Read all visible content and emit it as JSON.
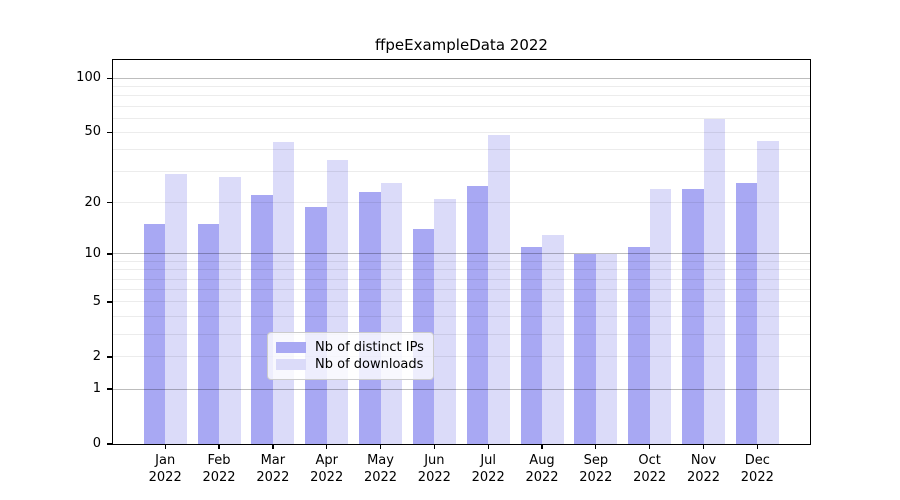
{
  "chart_data": {
    "type": "bar",
    "title": "ffpeExampleData 2022",
    "categories": [
      "Jan",
      "Feb",
      "Mar",
      "Apr",
      "May",
      "Jun",
      "Jul",
      "Aug",
      "Sep",
      "Oct",
      "Nov",
      "Dec"
    ],
    "year_label": "2022",
    "series": [
      {
        "name": "Nb of distinct IPs",
        "color": "#a8a8f3",
        "values": [
          15,
          15,
          22,
          19,
          23,
          14,
          25,
          11,
          10,
          11,
          24,
          26
        ]
      },
      {
        "name": "Nb of downloads",
        "color": "#dbdbf9",
        "values": [
          29,
          28,
          44,
          35,
          26,
          21,
          48,
          13,
          10,
          24,
          59,
          45
        ]
      }
    ],
    "xlabel": "",
    "ylabel": "",
    "yscale": "log1p",
    "ylim": [
      0,
      126
    ],
    "yticks": [
      100,
      50,
      20,
      10,
      5,
      2,
      1,
      0
    ],
    "gridline_values": [
      1,
      2,
      3,
      4,
      5,
      6,
      7,
      8,
      9,
      10,
      20,
      30,
      40,
      50,
      60,
      70,
      80,
      90,
      100
    ],
    "major_gridlines": [
      1,
      10,
      100
    ],
    "grid": true,
    "legend_position": "bottom-center",
    "frame_color": "#000000",
    "background_color": "#ffffff"
  }
}
